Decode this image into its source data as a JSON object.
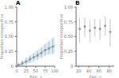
{
  "chart_data": [
    {
      "type": "line",
      "title": "A",
      "x_label": "Age, y",
      "y_label": "Proportion seropositive",
      "xlim": [
        0,
        100
      ],
      "ylim": [
        0,
        1.0
      ],
      "xticks": [
        0,
        25,
        50,
        75,
        100
      ],
      "yticks": [
        0,
        0.25,
        {
          "value": 0.5,
          "label": "0.50"
        },
        0.75,
        {
          "value": 1.0,
          "label": "1.00"
        }
      ],
      "series": [
        {
          "type": "line",
          "color": "#5bafd6",
          "x": [
            0,
            10,
            20,
            30,
            40,
            50,
            60,
            70,
            80,
            90,
            100
          ],
          "values": [
            0.0,
            0.03,
            0.06,
            0.09,
            0.13,
            0.17,
            0.21,
            0.25,
            0.29,
            0.32,
            0.35
          ],
          "ci_low": [
            0.0,
            0.01,
            0.02,
            0.04,
            0.07,
            0.1,
            0.13,
            0.16,
            0.19,
            0.21,
            0.22
          ],
          "ci_high": [
            0.02,
            0.05,
            0.1,
            0.15,
            0.2,
            0.25,
            0.3,
            0.35,
            0.41,
            0.45,
            0.5
          ]
        },
        {
          "type": "scatter",
          "color": "#909090",
          "x": [
            5,
            15,
            25,
            35,
            45,
            55,
            65,
            75,
            85,
            95
          ],
          "values": [
            0.02,
            0.05,
            0.08,
            0.12,
            0.15,
            0.18,
            0.22,
            0.27,
            0.3,
            0.33
          ],
          "error_low": [
            0.0,
            0.01,
            0.03,
            0.06,
            0.09,
            0.11,
            0.14,
            0.18,
            0.2,
            0.2
          ],
          "error_high": [
            0.06,
            0.1,
            0.14,
            0.19,
            0.22,
            0.26,
            0.31,
            0.37,
            0.42,
            0.48
          ]
        }
      ]
    },
    {
      "type": "scatter",
      "title": "B",
      "x_label": "Age, y",
      "y_label": "Proportion seropositive",
      "xlim": [
        15,
        90
      ],
      "ylim": [
        0,
        1.0
      ],
      "xticks": [
        20,
        40,
        60,
        80
      ],
      "yticks": [
        0,
        0.25,
        {
          "value": 0.5,
          "label": "0.50"
        },
        0.75,
        {
          "value": 1.0,
          "label": "1.00"
        }
      ],
      "series": [
        {
          "type": "scatter",
          "color": "#909090",
          "x": [
            22,
            32,
            42,
            52,
            62,
            72,
            82
          ],
          "values": [
            0.63,
            0.67,
            0.6,
            0.65,
            0.63,
            0.68,
            0.58
          ],
          "error_low": [
            0.4,
            0.5,
            0.4,
            0.5,
            0.45,
            0.52,
            0.33
          ],
          "error_high": [
            0.82,
            0.82,
            0.78,
            0.8,
            0.79,
            0.84,
            0.8
          ]
        }
      ]
    }
  ]
}
